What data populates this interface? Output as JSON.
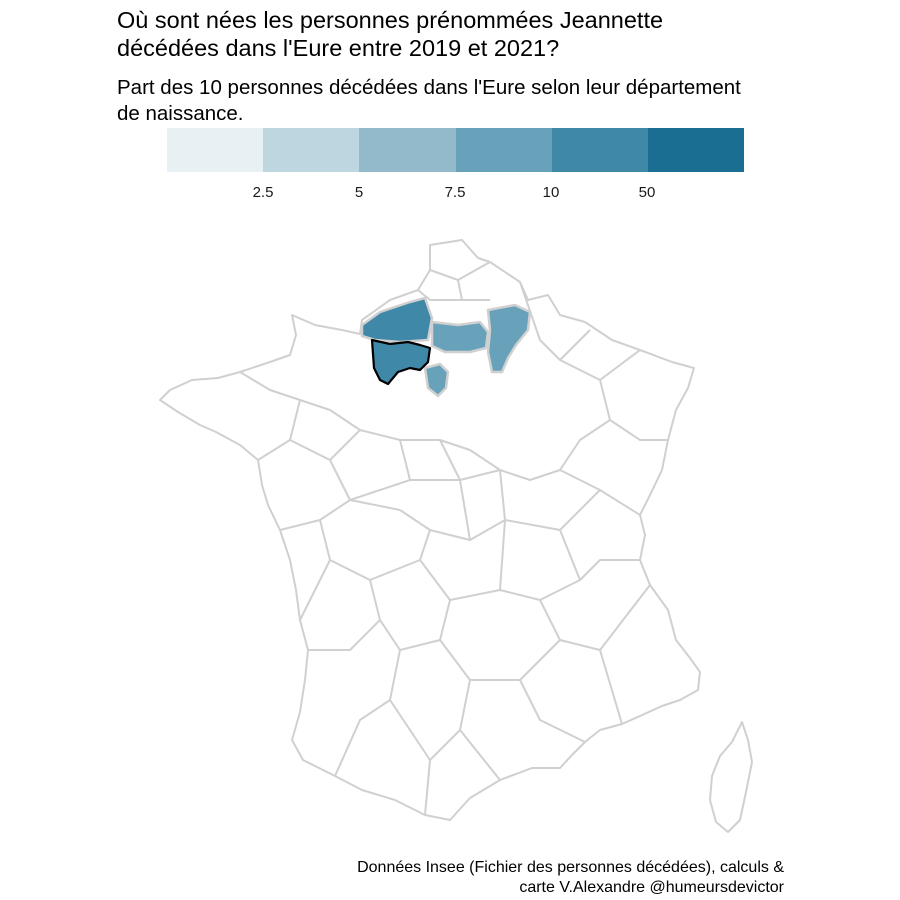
{
  "title": "Où sont nées les personnes prénommées Jeannette\ndécédées dans l'Eure entre 2019 et 2021?",
  "subtitle": "Part des 10 personnes décédées dans l'Eure selon leur département\nde naissance.",
  "caption": "Données Insee (Fichier des personnes décédées), calculs &\ncarte V.Alexandre @humeursdevictor",
  "legend": {
    "colors": [
      "#e7f0f3",
      "#bdd6df",
      "#93bacb",
      "#68a2ba",
      "#3f88a7",
      "#196e92"
    ],
    "ticks": [
      "2.5",
      "5",
      "7.5",
      "10",
      "50"
    ]
  },
  "map": {
    "outline_color": "#d0d0d0",
    "highlight_outline_color": "#000000",
    "highlighted_department": "Eure",
    "filled_regions": [
      {
        "name": "Seine-Maritime",
        "color": "#3f88a7"
      },
      {
        "name": "Eure",
        "color": "#3f88a7"
      },
      {
        "name": "Oise",
        "color": "#68a2ba"
      },
      {
        "name": "Aisne",
        "color": "#68a2ba"
      },
      {
        "name": "Essonne/Paris area",
        "color": "#68a2ba"
      }
    ]
  }
}
